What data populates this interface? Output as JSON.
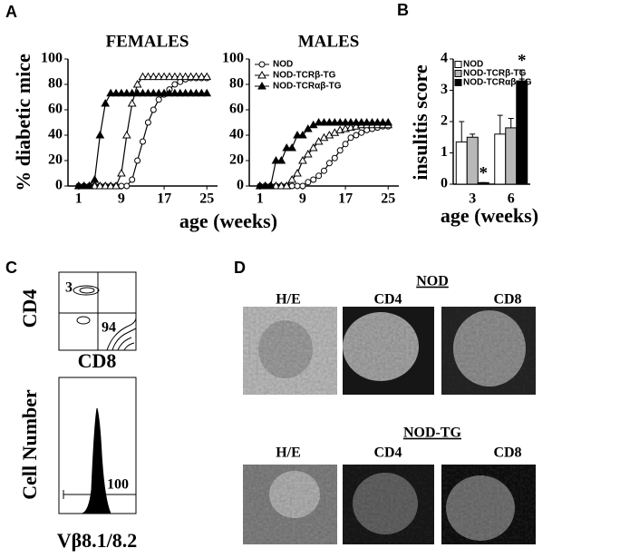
{
  "panel_labels": [
    "A",
    "B",
    "C",
    "D"
  ],
  "chart_data": [
    {
      "type": "line",
      "title": "FEMALES",
      "ylabel": "% diabetic mice",
      "xlabel": "age (weeks)",
      "x": [
        1,
        2,
        3,
        4,
        5,
        6,
        7,
        8,
        9,
        10,
        11,
        12,
        13,
        14,
        15,
        16,
        17,
        18,
        19,
        20,
        21,
        22,
        23,
        24,
        25
      ],
      "xlim": [
        -1,
        27
      ],
      "xticks": [
        1,
        9,
        17,
        25
      ],
      "ylim": [
        0,
        100
      ],
      "yticks": [
        0,
        20,
        40,
        60,
        80,
        100
      ],
      "series": [
        {
          "color": "#000",
          "marker": "circle-open",
          "values": [
            0,
            0,
            0,
            0,
            0,
            0,
            0,
            0,
            0,
            0,
            5,
            20,
            35,
            50,
            60,
            68,
            72,
            76,
            80,
            82,
            84,
            85,
            85,
            85,
            85
          ]
        },
        {
          "color": "#000",
          "marker": "triangle-open",
          "values": [
            0,
            0,
            0,
            0,
            0,
            0,
            0,
            0,
            10,
            40,
            65,
            80,
            86,
            86,
            86,
            86,
            86,
            86,
            86,
            86,
            86,
            86,
            86,
            86,
            86
          ]
        },
        {
          "color": "#000",
          "marker": "triangle-filled",
          "values": [
            0,
            0,
            0,
            5,
            40,
            65,
            73,
            73,
            73,
            73,
            73,
            73,
            73,
            73,
            73,
            73,
            73,
            73,
            73,
            73,
            73,
            73,
            73,
            73,
            73
          ]
        }
      ]
    },
    {
      "type": "line",
      "title": "MALES",
      "legend": "upper left",
      "x": [
        1,
        2,
        3,
        4,
        5,
        6,
        7,
        8,
        9,
        10,
        11,
        12,
        13,
        14,
        15,
        16,
        17,
        18,
        19,
        20,
        21,
        22,
        23,
        24,
        25
      ],
      "xlim": [
        -1,
        27
      ],
      "xticks": [
        1,
        9,
        17,
        25
      ],
      "ylim": [
        0,
        100
      ],
      "yticks": [
        0,
        20,
        40,
        60,
        80,
        100
      ],
      "series": [
        {
          "name": "NOD",
          "color": "#000",
          "marker": "circle-open",
          "values": [
            0,
            0,
            0,
            0,
            0,
            0,
            0,
            0,
            0,
            3,
            5,
            8,
            12,
            18,
            22,
            28,
            33,
            38,
            40,
            42,
            44,
            45,
            46,
            47,
            47
          ]
        },
        {
          "name": "NOD-TCRβ-TG",
          "color": "#000",
          "marker": "triangle-open",
          "values": [
            0,
            0,
            0,
            0,
            0,
            0,
            5,
            10,
            20,
            25,
            30,
            35,
            38,
            40,
            42,
            44,
            45,
            46,
            47,
            48,
            48,
            48,
            48,
            48,
            48
          ]
        },
        {
          "name": "NOD-TCRαβ-TG",
          "color": "#000",
          "marker": "triangle-filled",
          "values": [
            0,
            0,
            0,
            20,
            20,
            30,
            30,
            40,
            40,
            45,
            48,
            50,
            50,
            50,
            50,
            50,
            50,
            50,
            50,
            50,
            50,
            50,
            50,
            50,
            50
          ]
        }
      ]
    },
    {
      "type": "bar",
      "ylabel": "insulitis score",
      "xlabel": "age (weeks)",
      "legend": "upper left",
      "categories": [
        "3",
        "6"
      ],
      "ylim": [
        0,
        4
      ],
      "yticks": [
        0,
        1,
        2,
        3,
        4
      ],
      "series": [
        {
          "name": "NOD",
          "color": "#ffffff",
          "values": [
            1.35,
            1.6
          ],
          "errors": [
            0.65,
            0.6
          ]
        },
        {
          "name": "NOD-TCRβ-TG",
          "color": "#b8b8b8",
          "values": [
            1.5,
            1.8
          ],
          "errors": [
            0.1,
            0.3
          ]
        },
        {
          "name": "NOD-TCRαβ-TG",
          "color": "#000000",
          "values": [
            0.05,
            3.3
          ],
          "errors": [
            0,
            0.35
          ],
          "annotations": [
            "*",
            "*"
          ]
        }
      ]
    }
  ],
  "flow": {
    "contour": {
      "ylabel": "CD4",
      "xlabel": "CD8",
      "quadrant_labels": [
        "3",
        "94"
      ]
    },
    "histogram": {
      "ylabel": "Cell Number",
      "xlabel": "Vβ8.1/8.2",
      "gate_label": "100"
    }
  },
  "histology": {
    "groups": [
      {
        "title": "NOD",
        "columns": [
          "H/E",
          "CD4",
          "CD8"
        ]
      },
      {
        "title": "NOD-TG",
        "columns": [
          "H/E",
          "CD4",
          "CD8"
        ]
      }
    ]
  }
}
